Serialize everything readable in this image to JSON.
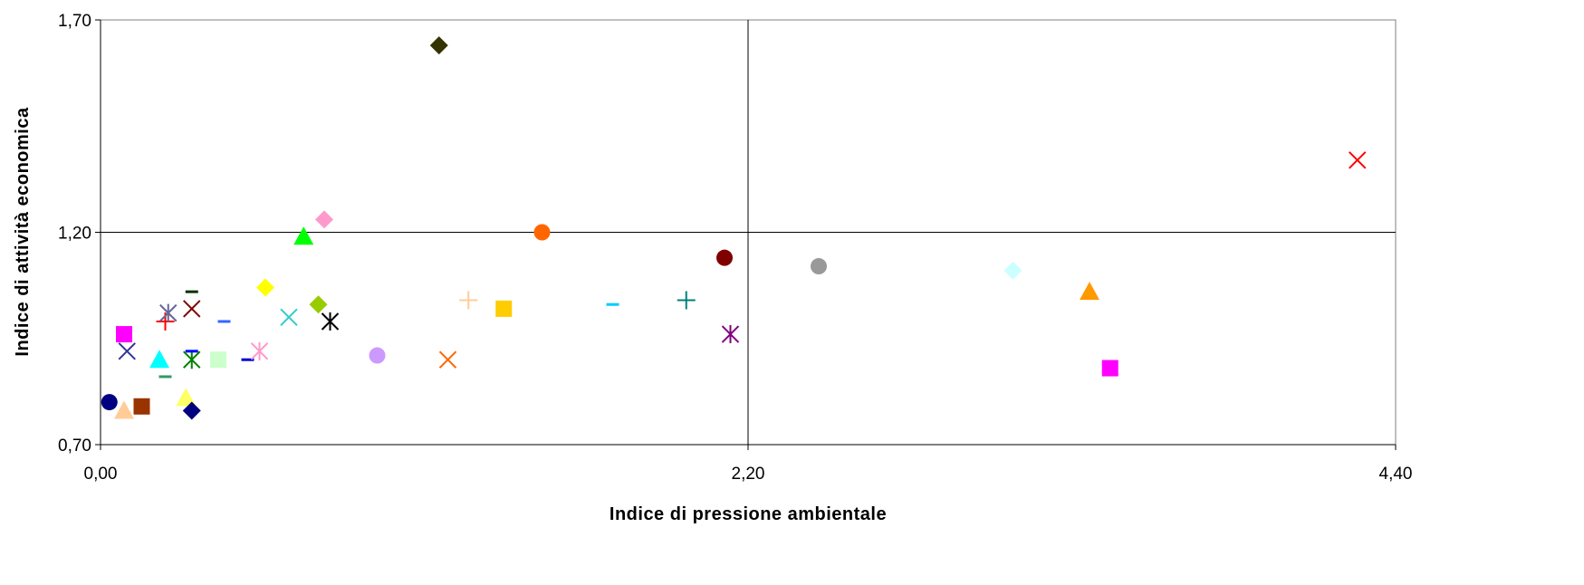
{
  "chart_data": {
    "type": "scatter",
    "title": "",
    "xlabel": "Indice di pressione ambientale",
    "ylabel": "Indice di attività economica",
    "xlim": [
      0.0,
      4.4
    ],
    "ylim": [
      0.7,
      1.7
    ],
    "x_ticks": [
      "0,00",
      "2,20",
      "4,40"
    ],
    "y_ticks": [
      "0,70",
      "1,20",
      "1,70"
    ],
    "x_tick_values": [
      0.0,
      2.2,
      4.4
    ],
    "y_tick_values": [
      0.7,
      1.2,
      1.7
    ],
    "quadrant_lines": {
      "x": 2.2,
      "y": 1.2
    },
    "grid": false,
    "legend": "none",
    "series": [
      {
        "values": [
          [
            0.03,
            0.8
          ]
        ],
        "marker": "circle",
        "color": "#000080"
      },
      {
        "values": [
          [
            0.08,
            0.96
          ]
        ],
        "marker": "square",
        "color": "#FF00FF"
      },
      {
        "values": [
          [
            0.08,
            0.78
          ]
        ],
        "marker": "triangle",
        "color": "#FFCC99"
      },
      {
        "values": [
          [
            0.09,
            0.92
          ]
        ],
        "marker": "x",
        "color": "#333399"
      },
      {
        "values": [
          [
            0.14,
            0.79
          ]
        ],
        "marker": "square",
        "color": "#993300"
      },
      {
        "values": [
          [
            0.2,
            0.9
          ]
        ],
        "marker": "triangle",
        "color": "#00FFFF"
      },
      {
        "values": [
          [
            0.22,
            0.86
          ]
        ],
        "marker": "dash",
        "color": "#339966"
      },
      {
        "values": [
          [
            0.22,
            0.99
          ]
        ],
        "marker": "plus",
        "color": "#FF0000"
      },
      {
        "values": [
          [
            0.23,
            1.01
          ]
        ],
        "marker": "star",
        "color": "#666699"
      },
      {
        "values": [
          [
            0.29,
            0.81
          ]
        ],
        "marker": "triangle",
        "color": "#FFFF66"
      },
      {
        "values": [
          [
            0.31,
            0.78
          ]
        ],
        "marker": "diamond",
        "color": "#000080"
      },
      {
        "values": [
          [
            0.31,
            0.9
          ]
        ],
        "marker": "star",
        "color": "#008000"
      },
      {
        "values": [
          [
            0.31,
            0.92
          ]
        ],
        "marker": "dash",
        "color": "#0000FF"
      },
      {
        "values": [
          [
            0.31,
            1.02
          ]
        ],
        "marker": "x",
        "color": "#800000"
      },
      {
        "values": [
          [
            0.31,
            1.06
          ]
        ],
        "marker": "dash",
        "color": "#003300"
      },
      {
        "values": [
          [
            0.4,
            0.9
          ]
        ],
        "marker": "square",
        "color": "#CCFFCC"
      },
      {
        "values": [
          [
            0.42,
            0.99
          ]
        ],
        "marker": "dash",
        "color": "#3366FF"
      },
      {
        "values": [
          [
            0.5,
            0.9
          ]
        ],
        "marker": "dash",
        "color": "#0000CC"
      },
      {
        "values": [
          [
            0.54,
            0.92
          ]
        ],
        "marker": "star",
        "color": "#FF99CC"
      },
      {
        "values": [
          [
            0.56,
            1.07
          ]
        ],
        "marker": "diamond",
        "color": "#FFFF00"
      },
      {
        "values": [
          [
            0.64,
            1.0
          ]
        ],
        "marker": "x",
        "color": "#33CCCC"
      },
      {
        "values": [
          [
            0.69,
            1.19
          ]
        ],
        "marker": "triangle",
        "color": "#00FF00"
      },
      {
        "values": [
          [
            0.74,
            1.03
          ]
        ],
        "marker": "diamond",
        "color": "#99CC00"
      },
      {
        "values": [
          [
            0.76,
            1.23
          ]
        ],
        "marker": "diamond",
        "color": "#FF99CC"
      },
      {
        "values": [
          [
            0.78,
            0.99
          ]
        ],
        "marker": "star",
        "color": "#000000"
      },
      {
        "values": [
          [
            0.94,
            0.91
          ]
        ],
        "marker": "circle",
        "color": "#CC99FF"
      },
      {
        "values": [
          [
            1.15,
            1.64
          ]
        ],
        "marker": "diamond",
        "color": "#333300"
      },
      {
        "values": [
          [
            1.18,
            0.9
          ]
        ],
        "marker": "x",
        "color": "#FF6600"
      },
      {
        "values": [
          [
            1.25,
            1.04
          ]
        ],
        "marker": "plus",
        "color": "#FFCC99"
      },
      {
        "values": [
          [
            1.37,
            1.02
          ]
        ],
        "marker": "square",
        "color": "#FFCC00"
      },
      {
        "values": [
          [
            1.5,
            1.2
          ]
        ],
        "marker": "circle",
        "color": "#FF6600"
      },
      {
        "values": [
          [
            1.74,
            1.03
          ]
        ],
        "marker": "dash",
        "color": "#00CCFF"
      },
      {
        "values": [
          [
            1.99,
            1.04
          ]
        ],
        "marker": "plus",
        "color": "#008080"
      },
      {
        "values": [
          [
            2.12,
            1.14
          ]
        ],
        "marker": "circle",
        "color": "#800000"
      },
      {
        "values": [
          [
            2.14,
            0.96
          ]
        ],
        "marker": "star",
        "color": "#800080"
      },
      {
        "values": [
          [
            2.44,
            1.12
          ]
        ],
        "marker": "circle",
        "color": "#999999"
      },
      {
        "values": [
          [
            3.1,
            1.11
          ]
        ],
        "marker": "diamond",
        "color": "#CCFFFF"
      },
      {
        "values": [
          [
            3.36,
            1.06
          ]
        ],
        "marker": "triangle",
        "color": "#FF9900"
      },
      {
        "values": [
          [
            3.43,
            0.88
          ]
        ],
        "marker": "square",
        "color": "#FF00FF"
      },
      {
        "values": [
          [
            4.27,
            1.37
          ]
        ],
        "marker": "x",
        "color": "#FF0000"
      }
    ]
  }
}
